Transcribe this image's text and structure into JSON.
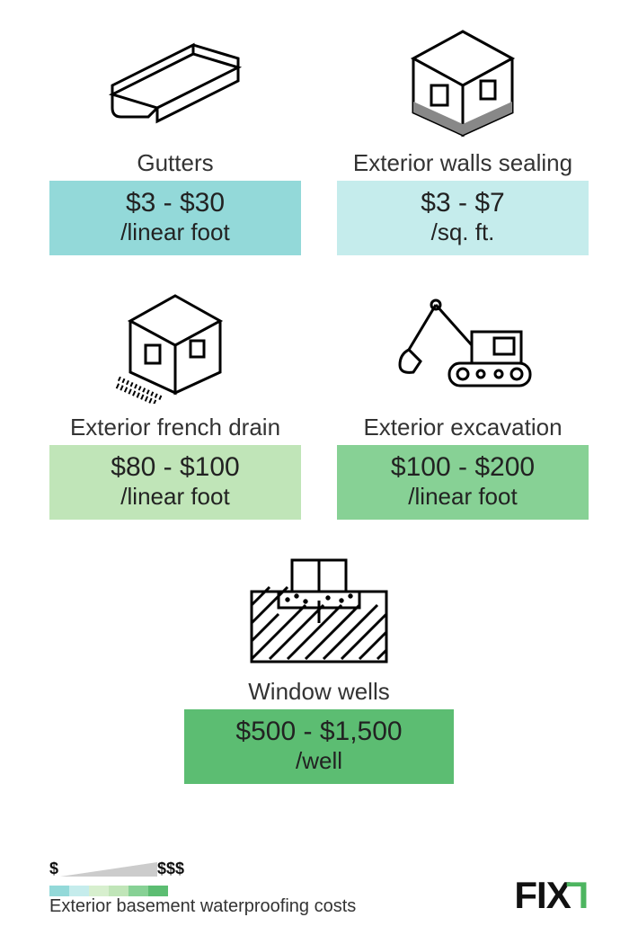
{
  "cards": [
    {
      "label": "Gutters",
      "price": "$3 - $30",
      "unit": "/linear foot",
      "bg": "#93d9d9"
    },
    {
      "label": "Exterior walls sealing",
      "price": "$3 - $7",
      "unit": "/sq. ft.",
      "bg": "#c5ecec"
    },
    {
      "label": "Exterior french drain",
      "price": "$80 - $100",
      "unit": "/linear foot",
      "bg": "#c0e5b8"
    },
    {
      "label": "Exterior excavation",
      "price": "$100 - $200",
      "unit": "/linear foot",
      "bg": "#87d195"
    },
    {
      "label": "Window wells",
      "price": "$500 - $1,500",
      "unit": "/well",
      "bg": "#5cbd72"
    }
  ],
  "legend": {
    "low": "$",
    "high": "$$$",
    "swatches": [
      "#93d9d9",
      "#c5ecec",
      "#d7efce",
      "#c0e5b8",
      "#87d195",
      "#5cbd72"
    ],
    "title": "Exterior basement waterproofing costs"
  },
  "logo": {
    "text": "FIX",
    "accent": "Γ"
  }
}
